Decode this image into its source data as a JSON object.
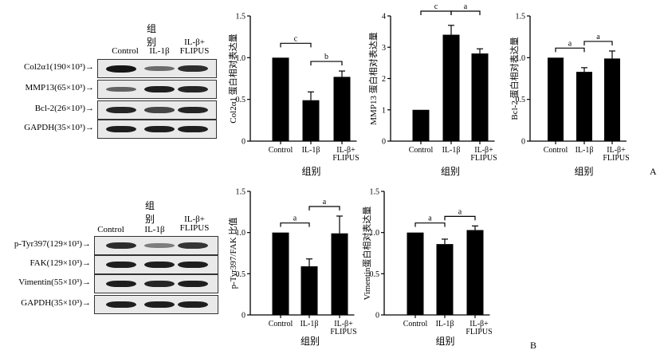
{
  "panel_letters": {
    "a": "A",
    "b": "B"
  },
  "blots": [
    {
      "group_title": "组别",
      "lanes": [
        "Control",
        "IL-1β",
        "IL-β+\nFLIPUS"
      ],
      "rows": [
        {
          "label": "Col2α1(190×10³)→",
          "intensity": [
            1.0,
            0.45,
            0.85
          ]
        },
        {
          "label": "MMP13(65×10³)→",
          "intensity": [
            0.5,
            0.95,
            0.9
          ]
        },
        {
          "label": "Bcl-2(26×10³)→",
          "intensity": [
            0.9,
            0.7,
            0.9
          ]
        },
        {
          "label": "GAPDH(35×10³)→",
          "intensity": [
            0.95,
            0.95,
            0.95
          ]
        }
      ]
    },
    {
      "group_title": "组别",
      "lanes": [
        "Control",
        "IL-1β",
        "IL-β+\nFLIPUS"
      ],
      "rows": [
        {
          "label": "p-Tyr397(129×10³)→",
          "intensity": [
            0.85,
            0.35,
            0.8
          ]
        },
        {
          "label": "FAK(129×10³)→",
          "intensity": [
            0.95,
            0.95,
            0.95
          ]
        },
        {
          "label": "Vimentin(55×10³)→",
          "intensity": [
            0.95,
            0.9,
            0.95
          ]
        },
        {
          "label": "GAPDH(35×10³)→",
          "intensity": [
            0.95,
            0.95,
            0.95
          ]
        }
      ]
    }
  ],
  "chart_data": [
    {
      "type": "bar",
      "ylabel": "Col2α1 蛋白相对表达量",
      "xlabel": "组别",
      "categories": [
        "Control",
        "IL-1β",
        "IL-β+\nFLIPUS"
      ],
      "values": [
        1.0,
        0.49,
        0.77
      ],
      "errors": [
        0,
        0.1,
        0.07
      ],
      "ylim": [
        0,
        1.5
      ],
      "yticks": [
        "0",
        "0.5",
        "1.0",
        "1.5"
      ],
      "significance": [
        {
          "from": 0,
          "to": 1,
          "label": "c"
        },
        {
          "from": 1,
          "to": 2,
          "label": "b"
        }
      ]
    },
    {
      "type": "bar",
      "ylabel": "MMP13 蛋白相对表达量",
      "xlabel": "组别",
      "categories": [
        "Control",
        "IL-1β",
        "IL-β+\nFLIPUS"
      ],
      "values": [
        1.0,
        3.4,
        2.8
      ],
      "errors": [
        0,
        0.3,
        0.15
      ],
      "ylim": [
        0,
        4
      ],
      "yticks": [
        "0",
        "1",
        "2",
        "3",
        "4"
      ],
      "significance": [
        {
          "from": 0,
          "to": 1,
          "label": "c"
        },
        {
          "from": 1,
          "to": 2,
          "label": "a"
        }
      ]
    },
    {
      "type": "bar",
      "ylabel": "Bcl-2 蛋白相对表达量",
      "xlabel": "组别",
      "categories": [
        "Control",
        "IL-1β",
        "IL-β+\nFLIPUS"
      ],
      "values": [
        1.0,
        0.83,
        0.99
      ],
      "errors": [
        0,
        0.05,
        0.09
      ],
      "ylim": [
        0,
        1.5
      ],
      "yticks": [
        "0",
        "0.5",
        "1.0",
        "1.5"
      ],
      "significance": [
        {
          "from": 0,
          "to": 1,
          "label": "a"
        },
        {
          "from": 1,
          "to": 2,
          "label": "a"
        }
      ]
    },
    {
      "type": "bar",
      "ylabel": "p-Tyr397/FAK 比值",
      "xlabel": "组别",
      "categories": [
        "Control",
        "IL-1β",
        "IL-β+\nFLIPUS"
      ],
      "values": [
        1.0,
        0.59,
        0.99
      ],
      "errors": [
        0,
        0.09,
        0.21
      ],
      "ylim": [
        0,
        1.5
      ],
      "yticks": [
        "0",
        "0.5",
        "1.0",
        "1.5"
      ],
      "significance": [
        {
          "from": 0,
          "to": 1,
          "label": "a"
        },
        {
          "from": 1,
          "to": 2,
          "label": "a"
        }
      ]
    },
    {
      "type": "bar",
      "ylabel": "Vimentin蛋白相对表达量",
      "xlabel": "组别",
      "categories": [
        "Control",
        "IL-1β",
        "IL-β+\nFLIPUS"
      ],
      "values": [
        1.0,
        0.86,
        1.03
      ],
      "errors": [
        0,
        0.06,
        0.05
      ],
      "ylim": [
        0,
        1.5
      ],
      "yticks": [
        "0",
        "0.5",
        "1.0",
        "1.5"
      ],
      "significance": [
        {
          "from": 0,
          "to": 1,
          "label": "a"
        },
        {
          "from": 1,
          "to": 2,
          "label": "a"
        }
      ]
    }
  ]
}
